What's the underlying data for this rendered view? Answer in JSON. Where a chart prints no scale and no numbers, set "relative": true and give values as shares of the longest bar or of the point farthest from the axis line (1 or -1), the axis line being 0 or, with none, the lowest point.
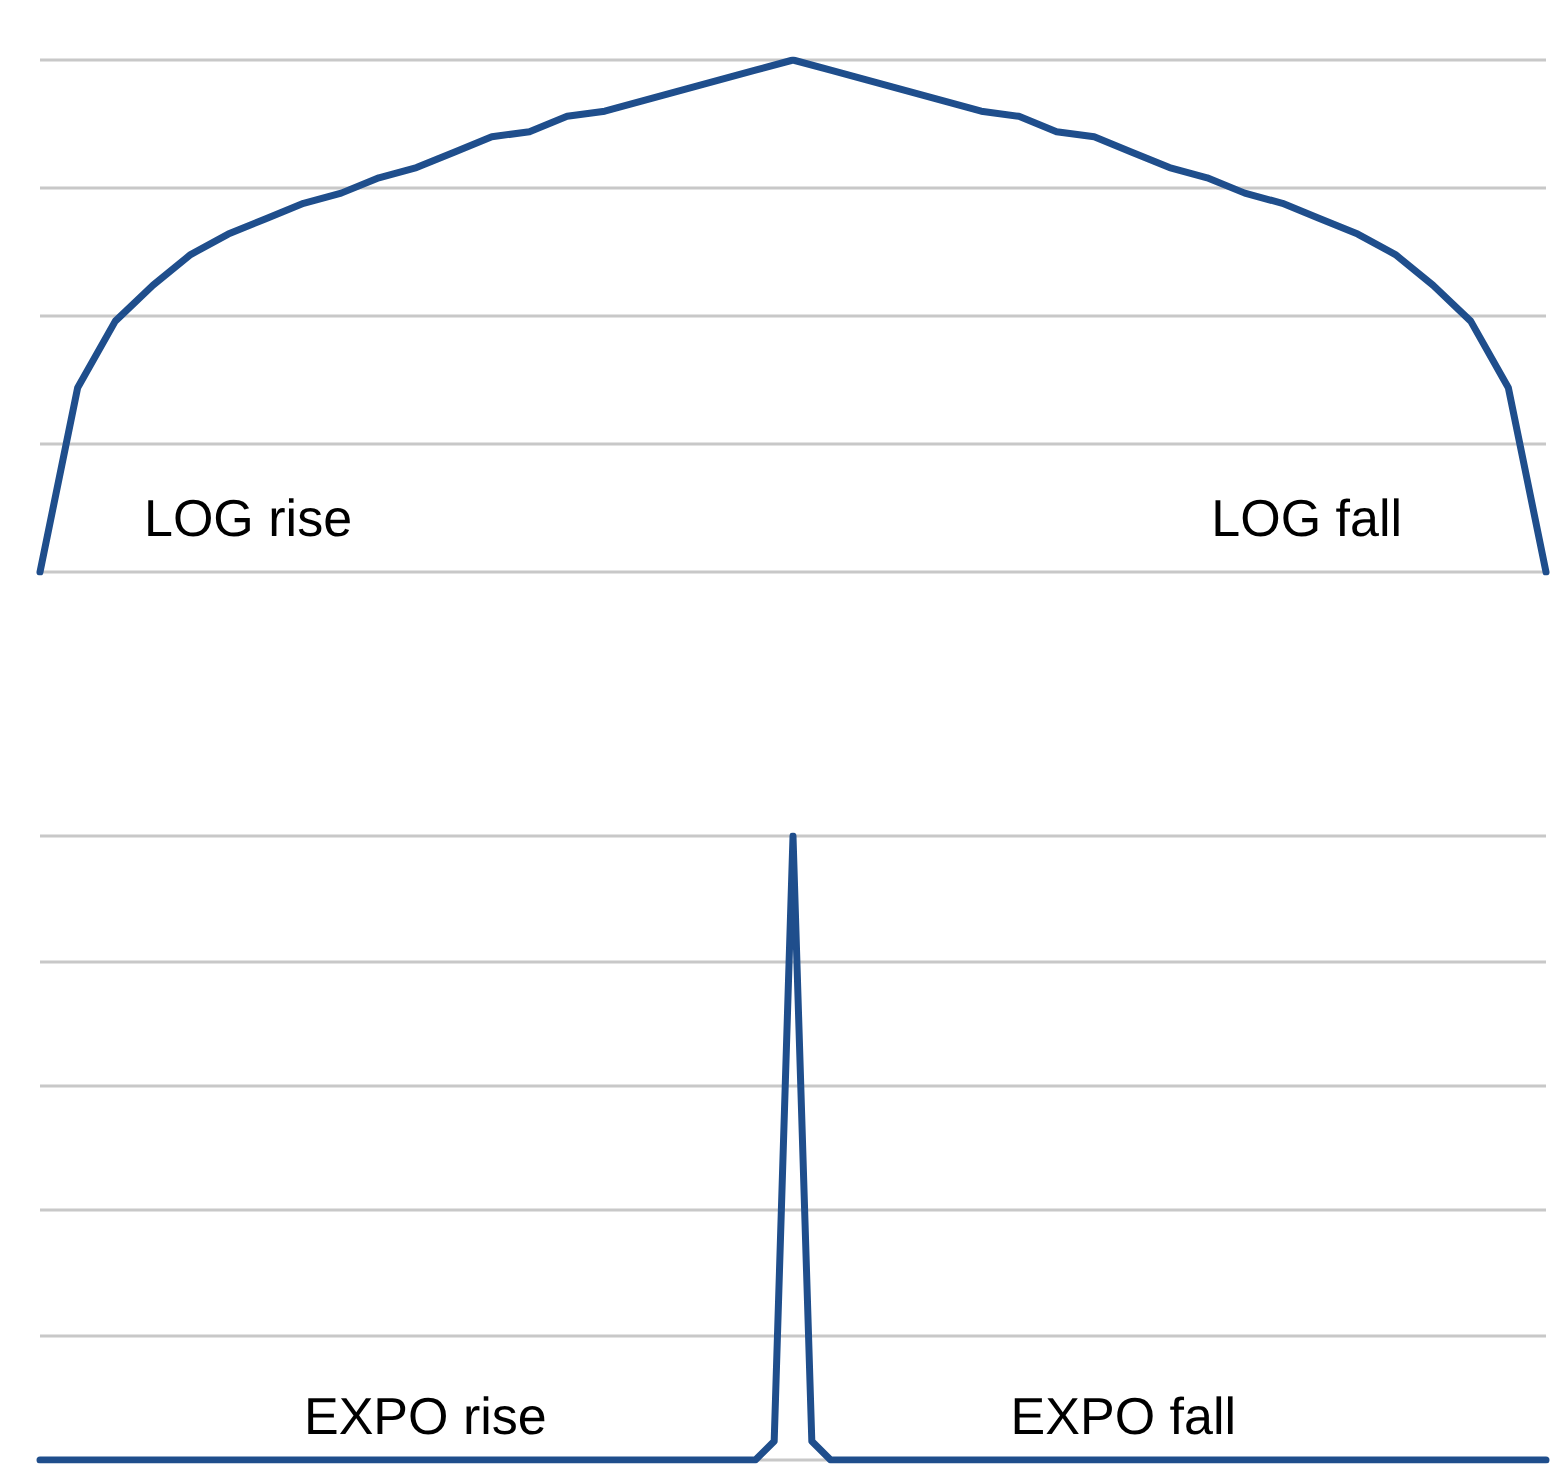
{
  "chart_data": [
    {
      "type": "line",
      "relative": true,
      "grid": "y",
      "marker": "none",
      "line_style": "solid",
      "categories": [
        null,
        null,
        null,
        null,
        null,
        null,
        null,
        null,
        null,
        null,
        null,
        null,
        null,
        null,
        null,
        null,
        null,
        null,
        null,
        null,
        null,
        null,
        null,
        null,
        null,
        null,
        null,
        null,
        null,
        null,
        null,
        null,
        null,
        null,
        null,
        null,
        null,
        null,
        null,
        null,
        null
      ],
      "series": [
        {
          "color": "#1f4e8c",
          "values": [
            0,
            0.36,
            0.49,
            0.56,
            0.62,
            0.66,
            0.69,
            0.72,
            0.74,
            0.77,
            0.79,
            0.82,
            0.85,
            0.86,
            0.89,
            0.9,
            0.92,
            0.94,
            0.96,
            0.98,
            1,
            0.98,
            0.96,
            0.94,
            0.92,
            0.9,
            0.89,
            0.86,
            0.85,
            0.82,
            0.79,
            0.77,
            0.74,
            0.72,
            0.69,
            0.66,
            0.62,
            0.56,
            0.49,
            0.36,
            0
          ]
        }
      ],
      "annotations": [
        "LOG rise",
        "LOG fall"
      ]
    },
    {
      "type": "line",
      "relative": true,
      "grid": "y",
      "marker": "none",
      "line_style": "solid",
      "categories": [
        null,
        null,
        null,
        null,
        null,
        null,
        null,
        null,
        null,
        null,
        null,
        null,
        null,
        null,
        null,
        null,
        null,
        null,
        null,
        null,
        null,
        null,
        null,
        null,
        null,
        null,
        null,
        null,
        null,
        null,
        null,
        null,
        null,
        null,
        null,
        null,
        null,
        null,
        null,
        null,
        null,
        null,
        null,
        null,
        null,
        null,
        null,
        null,
        null,
        null,
        null,
        null,
        null,
        null,
        null,
        null,
        null,
        null,
        null,
        null,
        null,
        null,
        null,
        null,
        null,
        null,
        null,
        null,
        null,
        null,
        null,
        null,
        null,
        null,
        null,
        null,
        null,
        null,
        null,
        null,
        null
      ],
      "series": [
        {
          "color": "#1f4e8c",
          "values": [
            0,
            0,
            0,
            0,
            0,
            0,
            0,
            0,
            0,
            0,
            0,
            0,
            0,
            0,
            0,
            0,
            0,
            0,
            0,
            0,
            0,
            0,
            0,
            0,
            0,
            0,
            0,
            0,
            0,
            0,
            0,
            0,
            0,
            0,
            0,
            0,
            0,
            0,
            0,
            0.03,
            1,
            0.03,
            0,
            0,
            0,
            0,
            0,
            0,
            0,
            0,
            0,
            0,
            0,
            0,
            0,
            0,
            0,
            0,
            0,
            0,
            0,
            0,
            0,
            0,
            0,
            0,
            0,
            0,
            0,
            0,
            0,
            0,
            0,
            0,
            0,
            0,
            0,
            0,
            0,
            0,
            0
          ]
        }
      ],
      "annotations": [
        "EXPO rise",
        "EXPO fall"
      ]
    }
  ]
}
